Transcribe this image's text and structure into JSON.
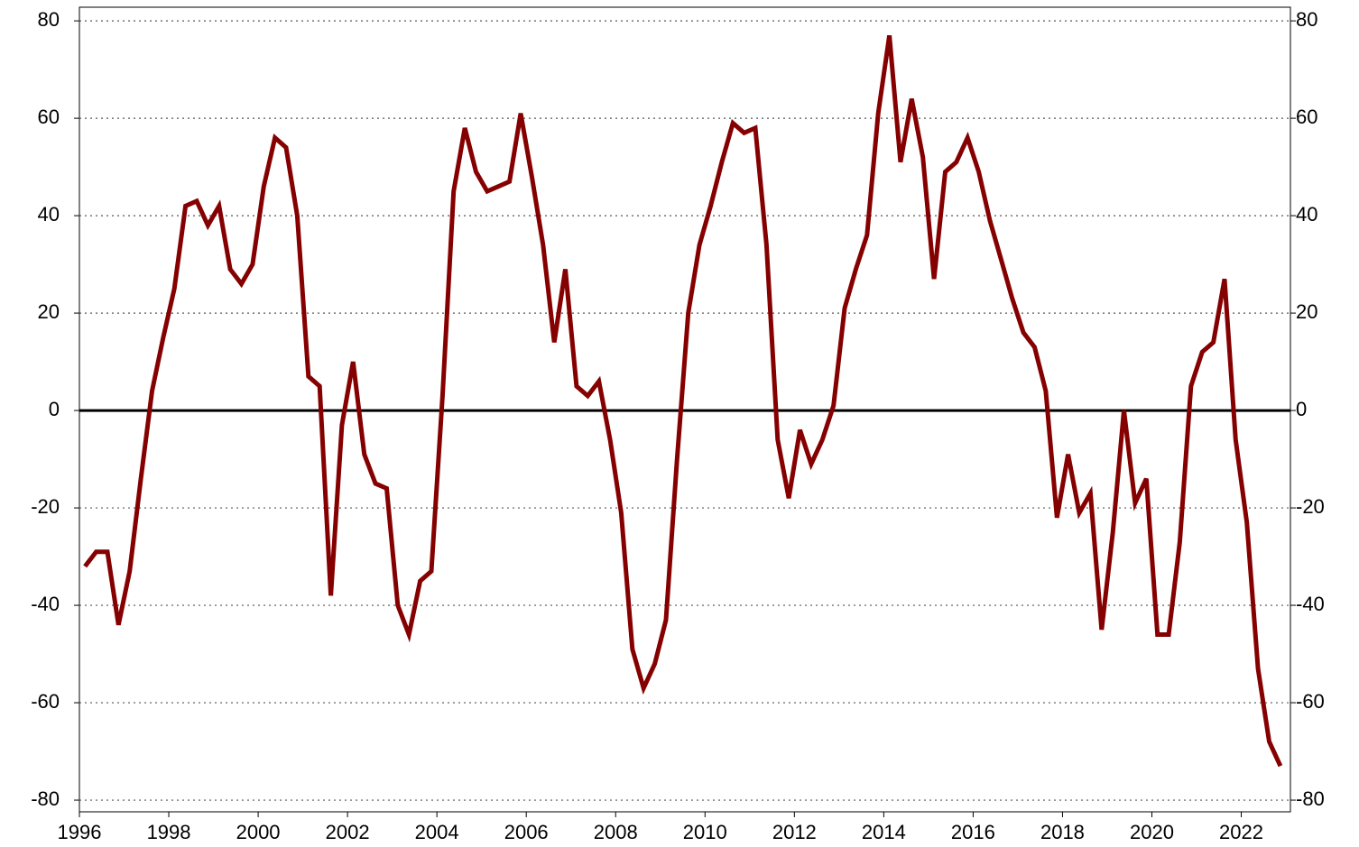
{
  "chart_data": {
    "type": "line",
    "x": [
      1996.125,
      1996.375,
      1996.625,
      1996.875,
      1997.125,
      1997.375,
      1997.625,
      1997.875,
      1998.125,
      1998.375,
      1998.625,
      1998.875,
      1999.125,
      1999.375,
      1999.625,
      1999.875,
      2000.125,
      2000.375,
      2000.625,
      2000.875,
      2001.125,
      2001.375,
      2001.625,
      2001.875,
      2002.125,
      2002.375,
      2002.625,
      2002.875,
      2003.125,
      2003.375,
      2003.625,
      2003.875,
      2004.125,
      2004.375,
      2004.625,
      2004.875,
      2005.125,
      2005.375,
      2005.625,
      2005.875,
      2006.125,
      2006.375,
      2006.625,
      2006.875,
      2007.125,
      2007.375,
      2007.625,
      2007.875,
      2008.125,
      2008.375,
      2008.625,
      2008.875,
      2009.125,
      2009.375,
      2009.625,
      2009.875,
      2010.125,
      2010.375,
      2010.625,
      2010.875,
      2011.125,
      2011.375,
      2011.625,
      2011.875,
      2012.125,
      2012.375,
      2012.625,
      2012.875,
      2013.125,
      2013.375,
      2013.625,
      2013.875,
      2014.125,
      2014.375,
      2014.625,
      2014.875,
      2015.125,
      2015.375,
      2015.625,
      2015.875,
      2016.125,
      2016.375,
      2016.625,
      2016.875,
      2017.125,
      2017.375,
      2017.625,
      2017.875,
      2018.125,
      2018.375,
      2018.625,
      2018.875,
      2019.125,
      2019.375,
      2019.625,
      2019.875,
      2020.125,
      2020.375,
      2020.625,
      2020.875,
      2021.125,
      2021.375,
      2021.625,
      2021.875,
      2022.125,
      2022.375,
      2022.625,
      2022.875
    ],
    "series": [
      {
        "color": "#850000",
        "values": [
          -32,
          -29,
          -29,
          -44,
          -33,
          -14,
          4,
          15,
          25,
          42,
          43,
          38,
          42,
          29,
          26,
          30,
          46,
          56,
          54,
          40,
          7,
          5,
          -38,
          -3,
          10,
          -9,
          -15,
          -16,
          -40,
          -46,
          -35,
          -33,
          3,
          45,
          58,
          49,
          45,
          46,
          47,
          61,
          48,
          34,
          14,
          29,
          5,
          3,
          6,
          -6,
          -21,
          -49,
          -57,
          -52,
          -43,
          -10,
          20,
          34,
          42,
          51,
          59,
          57,
          58,
          34,
          -6,
          -18,
          -4,
          -11,
          -6,
          1,
          21,
          29,
          36,
          61,
          77,
          51,
          64,
          52,
          27,
          49,
          51,
          56,
          49,
          39,
          31,
          23,
          16,
          13,
          4,
          -22,
          -9,
          -21,
          -17,
          -45,
          -25,
          0,
          -19,
          -14,
          -46,
          -46,
          -27,
          5,
          12,
          14,
          27,
          -6,
          -23,
          -53,
          -68,
          -73
        ]
      }
    ],
    "xlim": [
      1996,
      2023.1
    ],
    "xticks": [
      1996,
      1998,
      2000,
      2002,
      2004,
      2006,
      2008,
      2010,
      2012,
      2014,
      2016,
      2018,
      2020,
      2022
    ],
    "ylim": [
      -82.4,
      82.8
    ],
    "yticks": [
      -80,
      -60,
      -40,
      -20,
      0,
      20,
      40,
      60,
      80
    ],
    "y2lim": [
      -82.4,
      82.8
    ],
    "y2ticks": [
      -80,
      -60,
      -40,
      -20,
      0,
      20,
      40,
      60,
      80
    ],
    "grid": true
  }
}
